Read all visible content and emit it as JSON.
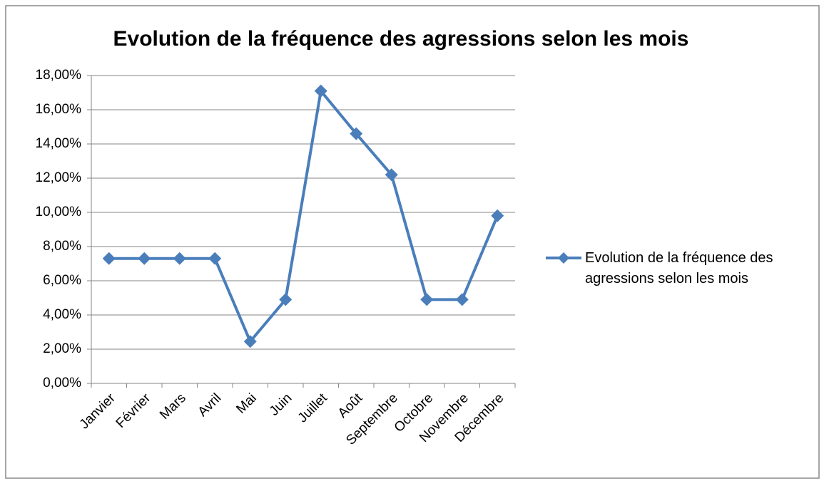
{
  "chart_data": {
    "type": "line",
    "title": "Evolution de la fréquence des agressions selon les mois",
    "categories": [
      "Janvier",
      "Février",
      "Mars",
      "Avril",
      "Mai",
      "Juin",
      "Juillet",
      "Août",
      "Septembre",
      "Octobre",
      "Novembre",
      "Décembre"
    ],
    "series": [
      {
        "name": "Evolution de la fréquence des agressions selon les mois",
        "color": "#4a7ebb",
        "values": [
          7.3,
          7.3,
          7.3,
          7.3,
          2.45,
          4.9,
          17.1,
          14.6,
          12.2,
          4.9,
          4.9,
          9.8
        ]
      }
    ],
    "ylim": [
      0,
      18
    ],
    "yticks": [
      {
        "value": 0,
        "label": "0,00%"
      },
      {
        "value": 2,
        "label": "2,00%"
      },
      {
        "value": 4,
        "label": "4,00%"
      },
      {
        "value": 6,
        "label": "6,00%"
      },
      {
        "value": 8,
        "label": "8,00%"
      },
      {
        "value": 10,
        "label": "10,00%"
      },
      {
        "value": 12,
        "label": "12,00%"
      },
      {
        "value": 14,
        "label": "14,00%"
      },
      {
        "value": 16,
        "label": "16,00%"
      },
      {
        "value": 18,
        "label": "18,00%"
      }
    ],
    "grid": true,
    "legend": "right"
  }
}
